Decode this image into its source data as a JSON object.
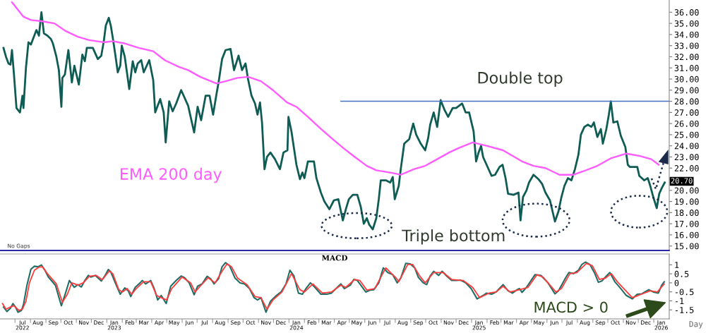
{
  "chart_data": [
    {
      "type": "line",
      "xlim": [
        "2022-06-01",
        "2026-02-01"
      ],
      "ylim": [
        14.6,
        37.1
      ],
      "tick_labels": "y",
      "yticks": [
        {
          "value": 15,
          "label": "15.00"
        },
        {
          "value": 16,
          "label": "16.00"
        },
        {
          "value": 17,
          "label": "17.00"
        },
        {
          "value": 18,
          "label": "18.00"
        },
        {
          "value": 19,
          "label": "19.00"
        },
        {
          "value": 20,
          "label": "20.00"
        },
        {
          "value": 21,
          "label": null
        },
        {
          "value": 22,
          "label": "22.00"
        },
        {
          "value": 23,
          "label": "23.00"
        },
        {
          "value": 24,
          "label": "24.00"
        },
        {
          "value": 25,
          "label": "25.00"
        },
        {
          "value": 26,
          "label": "26.00"
        },
        {
          "value": 27,
          "label": "27.00"
        },
        {
          "value": 28,
          "label": "28.00"
        },
        {
          "value": 29,
          "label": "29.00"
        },
        {
          "value": 30,
          "label": "30.00"
        },
        {
          "value": 31,
          "label": "31.00"
        },
        {
          "value": 32,
          "label": "32.00"
        },
        {
          "value": 33,
          "label": "33.00"
        },
        {
          "value": 34,
          "label": "34.00"
        },
        {
          "value": 35,
          "label": "35.00"
        },
        {
          "value": 36,
          "label": "36.00"
        }
      ],
      "annotations": [
        "No Gaps",
        "Double top",
        "Triple bottom"
      ],
      "series": [
        {
          "color": "#0f5c55",
          "x": [
            "2022-06-08",
            "2022-06-13",
            "2022-06-18",
            "2022-06-22",
            "2022-06-25",
            "2022-06-29",
            "2022-07-04",
            "2022-07-11",
            "2022-07-16",
            "2022-07-18",
            "2022-07-23",
            "2022-07-28",
            "2022-08-02",
            "2022-08-13",
            "2022-08-18",
            "2022-08-23",
            "2022-08-28",
            "2022-09-04",
            "2022-09-11",
            "2022-09-15",
            "2022-09-22",
            "2022-09-27",
            "2022-10-02",
            "2022-10-04",
            "2022-10-09",
            "2022-10-16",
            "2022-10-23",
            "2022-10-28",
            "2022-11-06",
            "2022-11-13",
            "2022-11-18",
            "2022-11-22",
            "2022-12-04",
            "2022-12-14",
            "2022-12-21",
            "2022-12-26",
            "2022-12-30",
            "2023-01-05",
            "2023-01-09",
            "2023-01-13",
            "2023-01-18",
            "2023-01-23",
            "2023-01-28",
            "2023-01-31",
            "2023-02-06",
            "2023-02-15",
            "2023-02-22",
            "2023-02-27",
            "2023-03-04",
            "2023-03-11",
            "2023-03-16",
            "2023-03-27",
            "2023-04-04",
            "2023-04-08",
            "2023-04-18",
            "2023-04-25",
            "2023-04-29",
            "2023-05-06",
            "2023-05-13",
            "2023-05-20",
            "2023-05-30",
            "2023-06-13",
            "2023-06-25",
            "2023-07-02",
            "2023-07-09",
            "2023-07-18",
            "2023-07-26",
            "2023-08-02",
            "2023-08-09",
            "2023-08-13",
            "2023-08-20",
            "2023-08-27",
            "2023-09-06",
            "2023-09-13",
            "2023-09-22",
            "2023-09-29",
            "2023-10-06",
            "2023-10-11",
            "2023-10-18",
            "2023-10-25",
            "2023-10-30",
            "2023-11-04",
            "2023-11-08",
            "2023-11-13",
            "2023-11-18",
            "2023-11-25",
            "2023-12-04",
            "2023-12-14",
            "2023-12-21",
            "2023-12-29",
            "2023-12-31",
            "2024-01-06",
            "2024-01-16",
            "2024-01-23",
            "2024-01-28",
            "2024-02-01",
            "2024-02-08",
            "2024-02-20",
            "2024-02-25",
            "2024-03-05",
            "2024-03-12",
            "2024-03-22",
            "2024-03-31",
            "2024-04-09",
            "2024-04-18",
            "2024-04-24",
            "2024-04-30",
            "2024-05-08",
            "2024-05-17",
            "2024-05-24",
            "2024-05-30",
            "2024-06-05",
            "2024-06-10",
            "2024-06-17",
            "2024-06-24",
            "2024-06-29",
            "2024-07-03",
            "2024-07-13",
            "2024-07-22",
            "2024-07-27",
            "2024-07-31",
            "2024-08-08",
            "2024-08-12",
            "2024-08-19",
            "2024-08-29",
            "2024-09-06",
            "2024-09-12",
            "2024-09-21",
            "2024-09-30",
            "2024-10-06",
            "2024-10-10",
            "2024-10-17",
            "2024-10-24",
            "2024-10-31",
            "2024-11-08",
            "2024-11-15",
            "2024-11-24",
            "2024-12-01",
            "2024-12-13",
            "2024-12-20",
            "2024-12-27",
            "2025-01-05",
            "2025-01-10",
            "2025-01-15",
            "2025-01-20",
            "2025-01-24",
            "2025-01-31",
            "2025-02-10",
            "2025-02-17",
            "2025-02-26",
            "2025-03-04",
            "2025-03-10",
            "2025-03-15",
            "2025-03-26",
            "2025-04-05",
            "2025-04-09",
            "2025-04-14",
            "2025-04-21",
            "2025-04-26",
            "2025-05-05",
            "2025-05-15",
            "2025-05-22",
            "2025-05-29",
            "2025-06-07",
            "2025-06-17",
            "2025-06-24",
            "2025-06-30",
            "2025-07-06",
            "2025-07-13",
            "2025-07-20",
            "2025-07-27",
            "2025-08-03",
            "2025-08-08",
            "2025-08-15",
            "2025-08-22",
            "2025-08-29",
            "2025-09-03",
            "2025-09-10",
            "2025-09-17",
            "2025-09-21",
            "2025-09-28",
            "2025-10-03",
            "2025-10-07",
            "2025-10-12",
            "2025-10-20",
            "2025-10-27",
            "2025-11-05",
            "2025-11-10",
            "2025-11-14",
            "2025-11-21",
            "2025-11-29",
            "2025-12-03",
            "2025-12-13",
            "2025-12-20",
            "2025-12-25",
            "2025-12-31",
            "2026-01-07",
            "2026-01-12",
            "2026-01-17",
            "2026-01-23"
          ],
          "values": [
            32.8,
            32.0,
            31.4,
            31.3,
            32.6,
            30.4,
            27.4,
            27.0,
            28.5,
            27.4,
            31.0,
            33.3,
            33.1,
            34.4,
            33.9,
            36.0,
            34.1,
            33.9,
            33.6,
            33.2,
            32.0,
            30.8,
            27.5,
            30.1,
            30.4,
            32.6,
            29.7,
            31.2,
            29.5,
            32.2,
            31.6,
            32.8,
            32.8,
            31.8,
            32.1,
            33.4,
            34.8,
            35.5,
            34.8,
            33.7,
            32.2,
            30.6,
            31.2,
            33.0,
            32.0,
            29.1,
            31.6,
            30.6,
            31.4,
            31.7,
            30.6,
            31.7,
            29.9,
            27.0,
            28.2,
            27.0,
            24.3,
            28.0,
            27.1,
            27.8,
            29.0,
            27.6,
            25.2,
            27.5,
            26.3,
            28.5,
            28.5,
            26.8,
            28.7,
            29.7,
            31.8,
            32.6,
            32.7,
            30.8,
            32.1,
            30.8,
            31.4,
            30.0,
            28.5,
            27.8,
            26.8,
            27.9,
            26.1,
            21.9,
            23.0,
            23.4,
            22.8,
            21.9,
            23.4,
            23.6,
            26.6,
            25.3,
            22.3,
            21.0,
            21.6,
            21.1,
            22.6,
            22.6,
            21.1,
            19.8,
            19.0,
            18.3,
            19.1,
            19.2,
            17.3,
            18.3,
            19.2,
            19.6,
            19.6,
            18.5,
            17.0,
            17.5,
            16.9,
            16.5,
            17.5,
            19.2,
            20.9,
            20.9,
            20.7,
            21.2,
            19.2,
            20.4,
            21.9,
            24.2,
            24.6,
            26.0,
            25.0,
            24.2,
            23.6,
            24.7,
            25.9,
            27.0,
            25.7,
            28.1,
            27.2,
            26.6,
            27.4,
            27.4,
            27.8,
            27.0,
            27.0,
            25.3,
            22.6,
            23.4,
            24.0,
            23.0,
            22.3,
            21.3,
            21.4,
            22.1,
            22.3,
            21.1,
            19.7,
            19.6,
            19.8,
            17.3,
            19.4,
            20.0,
            20.7,
            21.4,
            21.0,
            20.6,
            19.8,
            19.1,
            17.2,
            18.1,
            19.4,
            20.4,
            21.1,
            20.9,
            21.9,
            23.2,
            25.0,
            25.7,
            25.9,
            25.7,
            26.1,
            24.8,
            25.5,
            24.2,
            25.5,
            26.8,
            28.0,
            26.1,
            26.2,
            24.9,
            23.9,
            22.3,
            22.1,
            22.1,
            22.1,
            21.3,
            20.9,
            21.1,
            20.4,
            19.4,
            18.4,
            19.7,
            20.2,
            20.7
          ],
          "value_labels": [
            null,
            null,
            null,
            null,
            null,
            null,
            null,
            null,
            null,
            null,
            null,
            null,
            null,
            null,
            null,
            null,
            null,
            null,
            null,
            null,
            null,
            null,
            null,
            null,
            null,
            null,
            null,
            null,
            null,
            null,
            null,
            null,
            null,
            null,
            null,
            null,
            null,
            null,
            null,
            null,
            null,
            null,
            null,
            null,
            null,
            null,
            null,
            null,
            null,
            null,
            null,
            null,
            null,
            null,
            null,
            null,
            null,
            null,
            null,
            null,
            null,
            null,
            null,
            null,
            null,
            null,
            null,
            null,
            null,
            null,
            null,
            null,
            null,
            null,
            null,
            null,
            null,
            null,
            null,
            null,
            null,
            null,
            null,
            null,
            null,
            null,
            null,
            null,
            null,
            null,
            null,
            null,
            null,
            null,
            null,
            null,
            null,
            null,
            null,
            null,
            null,
            null,
            null,
            null,
            null,
            null,
            null,
            null,
            null,
            null,
            null,
            null,
            null,
            null,
            null,
            null,
            null,
            null,
            null,
            null,
            null,
            null,
            null,
            null,
            null,
            null,
            null,
            null,
            null,
            null,
            null,
            null,
            null,
            null,
            null,
            null,
            null,
            null,
            null,
            null,
            null,
            null,
            null,
            null,
            null,
            null,
            null,
            null,
            null,
            null,
            null,
            null,
            null,
            null,
            null,
            null,
            null,
            null,
            null,
            null,
            null,
            null,
            null,
            null,
            null,
            null,
            null,
            null,
            null,
            null,
            null,
            null,
            null,
            null,
            null,
            null,
            null,
            null,
            null,
            null,
            null,
            null,
            null,
            null,
            null,
            null,
            null,
            null,
            null,
            null,
            null,
            null,
            null,
            null,
            null,
            null,
            null,
            null,
            null,
            "20.70"
          ]
        },
        {
          "name": "EMA 200 day",
          "color": "#ff5cff",
          "x": [
            "2022-06-25",
            "2022-07-18",
            "2022-08-02",
            "2022-08-23",
            "2022-09-18",
            "2022-10-11",
            "2022-11-04",
            "2022-11-27",
            "2022-12-26",
            "2023-01-13",
            "2023-02-06",
            "2023-03-06",
            "2023-04-04",
            "2023-04-27",
            "2023-05-25",
            "2023-06-13",
            "2023-07-07",
            "2023-08-09",
            "2023-08-27",
            "2023-09-20",
            "2023-10-11",
            "2023-11-06",
            "2023-11-30",
            "2023-12-28",
            "2024-01-16",
            "2024-02-08",
            "2024-03-03",
            "2024-03-26",
            "2024-04-19",
            "2024-05-12",
            "2024-06-05",
            "2024-06-24",
            "2024-07-22",
            "2024-08-12",
            "2024-09-07",
            "2024-09-30",
            "2024-10-24",
            "2024-11-17",
            "2024-12-06",
            "2025-01-03",
            "2025-01-31",
            "2025-03-05",
            "2025-04-12",
            "2025-05-05",
            "2025-05-29",
            "2025-06-26",
            "2025-07-24",
            "2025-08-12",
            "2025-09-10",
            "2025-10-08",
            "2025-11-07",
            "2025-12-03",
            "2025-12-27",
            "2026-01-11"
          ],
          "values": [
            36.9,
            35.6,
            35.3,
            35.2,
            35.0,
            34.3,
            33.8,
            33.5,
            33.3,
            33.4,
            33.2,
            32.8,
            32.5,
            31.7,
            31.1,
            30.8,
            30.2,
            29.6,
            29.8,
            30.1,
            30.2,
            29.8,
            29.0,
            27.9,
            27.5,
            26.6,
            25.6,
            24.7,
            23.8,
            23.0,
            22.2,
            21.8,
            21.6,
            21.4,
            21.9,
            22.2,
            22.8,
            23.4,
            23.8,
            24.3,
            24.0,
            23.6,
            22.6,
            22.2,
            22.0,
            21.4,
            21.4,
            21.7,
            22.2,
            22.9,
            23.3,
            23.1,
            22.8,
            22.3
          ]
        },
        {
          "color": "#4472c4",
          "x": [
            "2024-04-14",
            "2026-02-01"
          ],
          "values": [
            28,
            28
          ]
        }
      ]
    },
    {
      "type": "line",
      "title": "MACD",
      "xlabel": "Day",
      "xlim": [
        "2022-06-01",
        "2026-02-01"
      ],
      "ylim": [
        -2.0,
        1.6
      ],
      "yticks": [
        -1.5,
        -1,
        -0.5,
        0,
        0.5,
        1
      ],
      "xticks": [
        {
          "value": "2022-07-01",
          "label": null
        },
        {
          "value": "2022-07-16",
          "label": "Jul\n2022"
        },
        {
          "value": "2022-08-01",
          "label": null
        },
        {
          "value": "2022-08-16",
          "label": "Aug"
        },
        {
          "value": "2022-09-01",
          "label": null
        },
        {
          "value": "2022-09-16",
          "label": "Sep"
        },
        {
          "value": "2022-10-01",
          "label": null
        },
        {
          "value": "2022-10-16",
          "label": "Oct"
        },
        {
          "value": "2022-11-01",
          "label": null
        },
        {
          "value": "2022-11-16",
          "label": "Nov"
        },
        {
          "value": "2022-12-01",
          "label": null
        },
        {
          "value": "2022-12-16",
          "label": "Dec"
        },
        {
          "value": "2023-01-01",
          "label": null
        },
        {
          "value": "2023-01-16",
          "label": "Jan\n2023"
        },
        {
          "value": "2023-02-01",
          "label": null
        },
        {
          "value": "2023-02-16",
          "label": "Feb"
        },
        {
          "value": "2023-03-01",
          "label": null
        },
        {
          "value": "2023-03-16",
          "label": "Mar"
        },
        {
          "value": "2023-04-01",
          "label": null
        },
        {
          "value": "2023-04-16",
          "label": "Apr"
        },
        {
          "value": "2023-05-01",
          "label": null
        },
        {
          "value": "2023-05-16",
          "label": "May"
        },
        {
          "value": "2023-06-01",
          "label": null
        },
        {
          "value": "2023-06-16",
          "label": "Jun"
        },
        {
          "value": "2023-07-01",
          "label": null
        },
        {
          "value": "2023-07-16",
          "label": "Jul"
        },
        {
          "value": "2023-08-01",
          "label": null
        },
        {
          "value": "2023-08-16",
          "label": "Aug"
        },
        {
          "value": "2023-09-01",
          "label": null
        },
        {
          "value": "2023-09-16",
          "label": "Sep"
        },
        {
          "value": "2023-10-01",
          "label": null
        },
        {
          "value": "2023-10-16",
          "label": "Oct"
        },
        {
          "value": "2023-11-01",
          "label": null
        },
        {
          "value": "2023-11-16",
          "label": "Nov"
        },
        {
          "value": "2023-12-01",
          "label": null
        },
        {
          "value": "2023-12-16",
          "label": "Dec"
        },
        {
          "value": "2024-01-01",
          "label": null
        },
        {
          "value": "2024-01-16",
          "label": "Jan\n2024"
        },
        {
          "value": "2024-02-01",
          "label": null
        },
        {
          "value": "2024-02-16",
          "label": "Feb"
        },
        {
          "value": "2024-03-01",
          "label": null
        },
        {
          "value": "2024-03-16",
          "label": "Mar"
        },
        {
          "value": "2024-04-01",
          "label": null
        },
        {
          "value": "2024-04-16",
          "label": "Apr"
        },
        {
          "value": "2024-05-01",
          "label": null
        },
        {
          "value": "2024-05-16",
          "label": "May"
        },
        {
          "value": "2024-06-01",
          "label": null
        },
        {
          "value": "2024-06-16",
          "label": "Jun"
        },
        {
          "value": "2024-07-01",
          "label": null
        },
        {
          "value": "2024-07-16",
          "label": "Jul"
        },
        {
          "value": "2024-08-01",
          "label": null
        },
        {
          "value": "2024-08-16",
          "label": "Aug"
        },
        {
          "value": "2024-09-01",
          "label": null
        },
        {
          "value": "2024-09-16",
          "label": "Sep"
        },
        {
          "value": "2024-10-01",
          "label": null
        },
        {
          "value": "2024-10-16",
          "label": "Oct"
        },
        {
          "value": "2024-11-01",
          "label": null
        },
        {
          "value": "2024-11-16",
          "label": "Nov"
        },
        {
          "value": "2024-12-01",
          "label": null
        },
        {
          "value": "2024-12-16",
          "label": "Dec"
        },
        {
          "value": "2025-01-01",
          "label": null
        },
        {
          "value": "2025-01-16",
          "label": "Jan\n2025"
        },
        {
          "value": "2025-02-01",
          "label": null
        },
        {
          "value": "2025-02-16",
          "label": "Feb"
        },
        {
          "value": "2025-03-01",
          "label": null
        },
        {
          "value": "2025-03-16",
          "label": "Mar"
        },
        {
          "value": "2025-04-01",
          "label": null
        },
        {
          "value": "2025-04-16",
          "label": "Apr"
        },
        {
          "value": "2025-05-01",
          "label": null
        },
        {
          "value": "2025-05-16",
          "label": "May"
        },
        {
          "value": "2025-06-01",
          "label": null
        },
        {
          "value": "2025-06-16",
          "label": "Jun"
        },
        {
          "value": "2025-07-01",
          "label": null
        },
        {
          "value": "2025-07-16",
          "label": "Jul"
        },
        {
          "value": "2025-08-01",
          "label": null
        },
        {
          "value": "2025-08-16",
          "label": "Aug"
        },
        {
          "value": "2025-09-01",
          "label": null
        },
        {
          "value": "2025-09-16",
          "label": "Sep"
        },
        {
          "value": "2025-10-01",
          "label": null
        },
        {
          "value": "2025-10-16",
          "label": "Oct"
        },
        {
          "value": "2025-11-01",
          "label": null
        },
        {
          "value": "2025-11-16",
          "label": "Nov"
        },
        {
          "value": "2025-12-01",
          "label": null
        },
        {
          "value": "2025-12-16",
          "label": "Dec"
        },
        {
          "value": "2026-01-01",
          "label": null
        },
        {
          "value": "2026-01-16",
          "label": "Jan\n2026"
        }
      ],
      "annotations": [
        "MACD > 0"
      ],
      "series": [
        {
          "color": "#1f6e66",
          "x": [
            "2022-06-08",
            "2022-06-15",
            "2022-06-22",
            "2022-06-27",
            "2022-07-02",
            "2022-07-07",
            "2022-07-14",
            "2022-07-18",
            "2022-07-25",
            "2022-08-02",
            "2022-08-09",
            "2022-08-16",
            "2022-08-23",
            "2022-08-30",
            "2022-09-06",
            "2022-09-20",
            "2022-10-02",
            "2022-10-11",
            "2022-10-18",
            "2022-10-28",
            "2022-11-04",
            "2022-11-11",
            "2022-11-18",
            "2022-11-25",
            "2022-11-30",
            "2022-12-09",
            "2022-12-21",
            "2022-12-28",
            "2023-01-04",
            "2023-01-09",
            "2023-01-18",
            "2023-01-28",
            "2023-02-06",
            "2023-02-13",
            "2023-02-18",
            "2023-02-27",
            "2023-03-09",
            "2023-03-13",
            "2023-03-20",
            "2023-03-30",
            "2023-04-06",
            "2023-04-13",
            "2023-04-20",
            "2023-04-30",
            "2023-05-09",
            "2023-05-20",
            "2023-05-30",
            "2023-06-06",
            "2023-06-15",
            "2023-06-25",
            "2023-07-02",
            "2023-07-11",
            "2023-07-21",
            "2023-07-28",
            "2023-08-04",
            "2023-08-13",
            "2023-08-20",
            "2023-08-27",
            "2023-09-04",
            "2023-09-15",
            "2023-09-25",
            "2023-10-04",
            "2023-10-14",
            "2023-10-23",
            "2023-10-30",
            "2023-11-06",
            "2023-11-16",
            "2023-11-25",
            "2023-12-07",
            "2023-12-16",
            "2023-12-26",
            "2024-01-03",
            "2024-01-11",
            "2024-01-20",
            "2024-01-28",
            "2024-02-04",
            "2024-02-13",
            "2024-02-22",
            "2024-03-05",
            "2024-03-17",
            "2024-03-26",
            "2024-04-09",
            "2024-04-14",
            "2024-04-21",
            "2024-05-03",
            "2024-05-10",
            "2024-05-17",
            "2024-06-03",
            "2024-06-12",
            "2024-06-19",
            "2024-06-29",
            "2024-07-08",
            "2024-07-17",
            "2024-07-27",
            "2024-08-05",
            "2024-08-12",
            "2024-08-22",
            "2024-08-31",
            "2024-09-09",
            "2024-09-16",
            "2024-09-26",
            "2024-10-03",
            "2024-10-10",
            "2024-10-17",
            "2024-10-27",
            "2024-11-03",
            "2024-11-12",
            "2024-11-22",
            "2024-12-01",
            "2024-12-10",
            "2024-12-20",
            "2024-12-31",
            "2025-01-12",
            "2025-01-24",
            "2025-01-31",
            "2025-02-10",
            "2025-02-19",
            "2025-03-05",
            "2025-03-15",
            "2025-03-24",
            "2025-04-02",
            "2025-04-07",
            "2025-04-12",
            "2025-04-21",
            "2025-05-08",
            "2025-05-20",
            "2025-06-03",
            "2025-06-17",
            "2025-06-24",
            "2025-07-08",
            "2025-07-15",
            "2025-07-24",
            "2025-08-03",
            "2025-08-10",
            "2025-08-17",
            "2025-08-26",
            "2025-09-05",
            "2025-09-12",
            "2025-09-19",
            "2025-09-28",
            "2025-10-05",
            "2025-10-15",
            "2025-10-27",
            "2025-11-07",
            "2025-11-19",
            "2025-11-29",
            "2025-12-08",
            "2025-12-22",
            "2025-12-31",
            "2026-01-10",
            "2026-01-17",
            "2026-01-22"
          ],
          "values": [
            -1.34,
            -1.59,
            -1.4,
            -1.15,
            -1.34,
            -1.63,
            -1.53,
            -1.21,
            -0.13,
            0.76,
            0.92,
            0.89,
            0.99,
            0.7,
            0.32,
            -0.13,
            -1.27,
            -0.51,
            0.13,
            -0.25,
            -0.1,
            -0.23,
            0.13,
            0.41,
            0.32,
            0.41,
            0.1,
            0.38,
            0.74,
            0.61,
            0.0,
            -0.63,
            -0.28,
            -0.44,
            -0.76,
            -0.25,
            0.0,
            0.13,
            -0.06,
            0.13,
            -0.32,
            -0.95,
            -0.7,
            -1.15,
            -0.19,
            0.13,
            0.38,
            0.28,
            0.0,
            -0.66,
            -0.19,
            -0.06,
            0.36,
            0.23,
            -0.06,
            0.23,
            0.89,
            1.12,
            0.95,
            0.26,
            0.0,
            -0.06,
            -0.32,
            -0.82,
            -0.95,
            -0.82,
            -1.63,
            -1.02,
            -0.7,
            -0.51,
            -0.06,
            0.7,
            0.38,
            -0.57,
            -0.63,
            -0.32,
            0.0,
            -0.25,
            -0.63,
            -0.63,
            -0.57,
            -0.19,
            -0.06,
            -0.32,
            -0.13,
            0.19,
            0.13,
            -0.51,
            -0.4,
            -0.38,
            0.0,
            0.83,
            0.57,
            0.45,
            0.0,
            0.26,
            1.08,
            1.05,
            0.83,
            0.32,
            0.0,
            -0.1,
            0.38,
            0.64,
            0.41,
            0.64,
            0.38,
            0.13,
            0.13,
            0.15,
            0.0,
            -0.32,
            -0.89,
            -0.7,
            -0.57,
            -0.63,
            -0.51,
            -0.1,
            -0.44,
            -0.57,
            -0.38,
            -0.32,
            -0.53,
            -0.25,
            0.45,
            0.41,
            0.0,
            -0.61,
            -0.44,
            0.26,
            0.57,
            0.51,
            0.7,
            1.02,
            1.15,
            1.02,
            0.51,
            0.03,
            0.1,
            0.38,
            0.57,
            0.06,
            -0.32,
            -0.7,
            -0.89,
            -0.63,
            -0.61,
            -0.38,
            -0.51,
            -0.57,
            -0.13,
            0.06
          ]
        },
        {
          "color": "#ff3b3b",
          "x": [
            "2022-06-06",
            "2022-06-13",
            "2022-06-22",
            "2022-06-29",
            "2022-07-09",
            "2022-07-16",
            "2022-07-23",
            "2022-07-30",
            "2022-08-09",
            "2022-08-18",
            "2022-08-25",
            "2022-09-04",
            "2022-09-22",
            "2022-10-04",
            "2022-10-14",
            "2022-10-23",
            "2022-11-04",
            "2022-11-15",
            "2022-11-27",
            "2022-12-11",
            "2022-12-23",
            "2023-01-06",
            "2023-01-13",
            "2023-01-25",
            "2023-02-01",
            "2023-02-11",
            "2023-02-20",
            "2023-03-01",
            "2023-03-16",
            "2023-03-30",
            "2023-04-11",
            "2023-04-20",
            "2023-05-01",
            "2023-05-11",
            "2023-06-01",
            "2023-06-18",
            "2023-06-27",
            "2023-07-07",
            "2023-07-23",
            "2023-08-06",
            "2023-08-20",
            "2023-08-30",
            "2023-09-08",
            "2023-09-20",
            "2023-10-09",
            "2023-10-25",
            "2023-11-06",
            "2023-11-18",
            "2023-11-30",
            "2023-12-18",
            "2024-01-06",
            "2024-01-23",
            "2024-02-01",
            "2024-02-18",
            "2024-03-08",
            "2024-03-26",
            "2024-04-14",
            "2024-04-24",
            "2024-05-12",
            "2024-05-22",
            "2024-06-05",
            "2024-06-21",
            "2024-07-13",
            "2024-08-03",
            "2024-08-08",
            "2024-08-26",
            "2024-09-05",
            "2024-09-19",
            "2024-09-30",
            "2024-10-17",
            "2024-11-05",
            "2024-11-22",
            "2024-12-15",
            "2025-01-03",
            "2025-01-17",
            "2025-02-05",
            "2025-02-19",
            "2025-03-05",
            "2025-03-19",
            "2025-04-07",
            "2025-04-24",
            "2025-05-12",
            "2025-05-24",
            "2025-06-19",
            "2025-06-30",
            "2025-07-17",
            "2025-07-31",
            "2025-08-19",
            "2025-08-31",
            "2025-09-14",
            "2025-09-26",
            "2025-10-08",
            "2025-10-20",
            "2025-11-19",
            "2025-12-01",
            "2025-12-25",
            "2026-01-08",
            "2026-01-22"
          ],
          "values": [
            -1.15,
            -1.46,
            -1.34,
            -1.27,
            -1.53,
            -1.46,
            -1.02,
            0.0,
            0.7,
            0.87,
            0.89,
            0.51,
            -0.06,
            -1.08,
            -0.63,
            0.0,
            -0.13,
            0.0,
            0.36,
            0.41,
            0.17,
            0.66,
            0.51,
            -0.38,
            -0.51,
            -0.32,
            -0.63,
            -0.32,
            0.06,
            0.06,
            -0.7,
            -0.82,
            -0.95,
            -0.32,
            0.32,
            0.0,
            -0.51,
            -0.19,
            0.28,
            0.0,
            0.64,
            1.05,
            0.89,
            0.26,
            -0.1,
            -0.76,
            -0.82,
            -1.46,
            -0.95,
            -0.51,
            0.51,
            -0.38,
            -0.51,
            -0.06,
            -0.57,
            -0.51,
            -0.13,
            -0.25,
            0.19,
            0.13,
            -0.4,
            -0.32,
            0.83,
            0.26,
            0.06,
            1.02,
            1.02,
            0.38,
            0.0,
            0.57,
            0.57,
            0.19,
            0.13,
            -0.25,
            -0.82,
            -0.57,
            -0.51,
            -0.19,
            -0.51,
            -0.38,
            -0.25,
            0.45,
            0.32,
            -0.51,
            -0.32,
            0.51,
            0.57,
            1.08,
            0.95,
            0.19,
            0.26,
            0.51,
            0.06,
            -0.82,
            -0.7,
            -0.44,
            -0.51,
            -0.06
          ]
        }
      ]
    }
  ]
}
